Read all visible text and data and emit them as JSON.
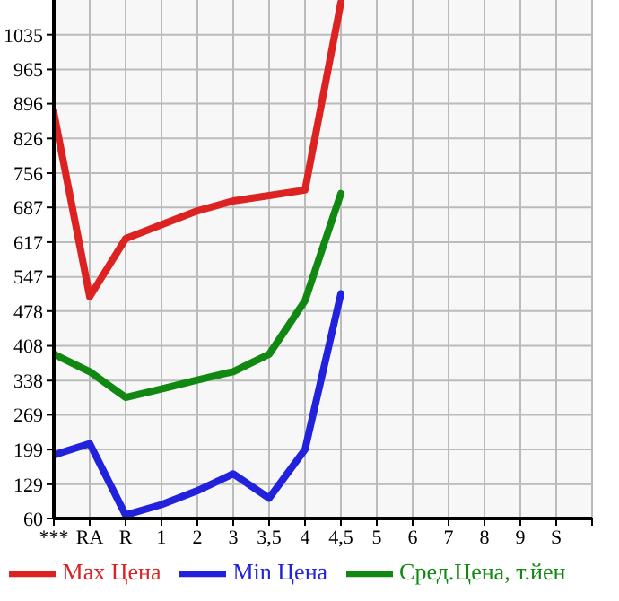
{
  "chart_data": {
    "type": "line",
    "categories": [
      "***",
      "RA",
      "R",
      "1",
      "2",
      "3",
      "3,5",
      "4",
      "4,5",
      "5",
      "6",
      "7",
      "8",
      "9",
      "S"
    ],
    "series": [
      {
        "name": "Max Цена",
        "color": "#dd2222",
        "values": [
          878,
          507,
          624,
          652,
          680,
          700,
          711,
          722,
          1100,
          null,
          null,
          null,
          null,
          null,
          null
        ]
      },
      {
        "name": "Min Цена",
        "color": "#2222dd",
        "values": [
          188,
          211,
          67,
          88,
          116,
          150,
          101,
          199,
          513,
          null,
          null,
          null,
          null,
          null,
          null
        ]
      },
      {
        "name": "Сред.Цена, т.йен",
        "color": "#118811",
        "values": [
          391,
          356,
          304,
          321,
          339,
          356,
          391,
          499,
          715,
          null,
          null,
          null,
          null,
          null,
          null
        ]
      }
    ],
    "ylim": [
      60,
      1105
    ],
    "yticks": [
      60,
      129,
      199,
      269,
      338,
      408,
      478,
      547,
      617,
      687,
      756,
      826,
      896,
      965,
      1035
    ],
    "grid": true,
    "legend": "bottom",
    "marker": "none",
    "line_style": "solid"
  }
}
